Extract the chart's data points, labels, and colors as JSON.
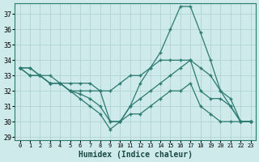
{
  "xlabel": "Humidex (Indice chaleur)",
  "bg_color": "#ceeaea",
  "line_color": "#2d7a70",
  "grid_color": "#afd4d0",
  "xlim": [
    -0.5,
    23.5
  ],
  "ylim": [
    28.8,
    37.7
  ],
  "yticks": [
    29,
    30,
    31,
    32,
    33,
    34,
    35,
    36,
    37
  ],
  "xticks": [
    0,
    1,
    2,
    3,
    4,
    5,
    6,
    7,
    8,
    9,
    10,
    11,
    12,
    13,
    14,
    15,
    16,
    17,
    18,
    19,
    20,
    21,
    22,
    23
  ],
  "series": [
    {
      "x": [
        0,
        1,
        2,
        3,
        4,
        5,
        6,
        7,
        8,
        9,
        10,
        11,
        12,
        13,
        14,
        15,
        16,
        17,
        18,
        19,
        20,
        21,
        22,
        23
      ],
      "y": [
        33.5,
        33.5,
        33.0,
        33.0,
        32.5,
        32.5,
        32.5,
        32.5,
        32.0,
        32.0,
        32.5,
        33.0,
        33.0,
        33.5,
        34.0,
        34.0,
        34.0,
        34.0,
        33.5,
        33.0,
        32.0,
        31.5,
        30.0,
        30.0
      ]
    },
    {
      "x": [
        0,
        1,
        2,
        3,
        4,
        5,
        6,
        7,
        8,
        9,
        10,
        11,
        12,
        13,
        14,
        15,
        16,
        17,
        18,
        19,
        20,
        21,
        22,
        23
      ],
      "y": [
        33.5,
        33.5,
        33.0,
        32.5,
        32.5,
        32.0,
        32.0,
        32.0,
        32.0,
        30.0,
        30.0,
        31.0,
        32.5,
        33.5,
        34.5,
        36.0,
        37.5,
        37.5,
        35.8,
        34.0,
        32.0,
        31.0,
        30.0,
        30.0
      ]
    },
    {
      "x": [
        0,
        1,
        2,
        3,
        4,
        5,
        6,
        7,
        8,
        9,
        10,
        11,
        12,
        13,
        14,
        15,
        16,
        17,
        18,
        19,
        20,
        21,
        22,
        23
      ],
      "y": [
        33.5,
        33.0,
        33.0,
        32.5,
        32.5,
        32.0,
        31.5,
        31.0,
        30.5,
        29.5,
        30.0,
        31.0,
        31.5,
        32.0,
        32.5,
        33.0,
        33.5,
        34.0,
        32.0,
        31.5,
        31.5,
        31.0,
        30.0,
        30.0
      ]
    },
    {
      "x": [
        0,
        1,
        2,
        3,
        4,
        5,
        6,
        7,
        8,
        9,
        10,
        11,
        12,
        13,
        14,
        15,
        16,
        17,
        18,
        19,
        20,
        21,
        22,
        23
      ],
      "y": [
        33.5,
        33.0,
        33.0,
        32.5,
        32.5,
        32.0,
        31.8,
        31.5,
        31.0,
        30.0,
        30.0,
        30.5,
        30.5,
        31.0,
        31.5,
        32.0,
        32.0,
        32.5,
        31.0,
        30.5,
        30.0,
        30.0,
        30.0,
        30.0
      ]
    }
  ]
}
